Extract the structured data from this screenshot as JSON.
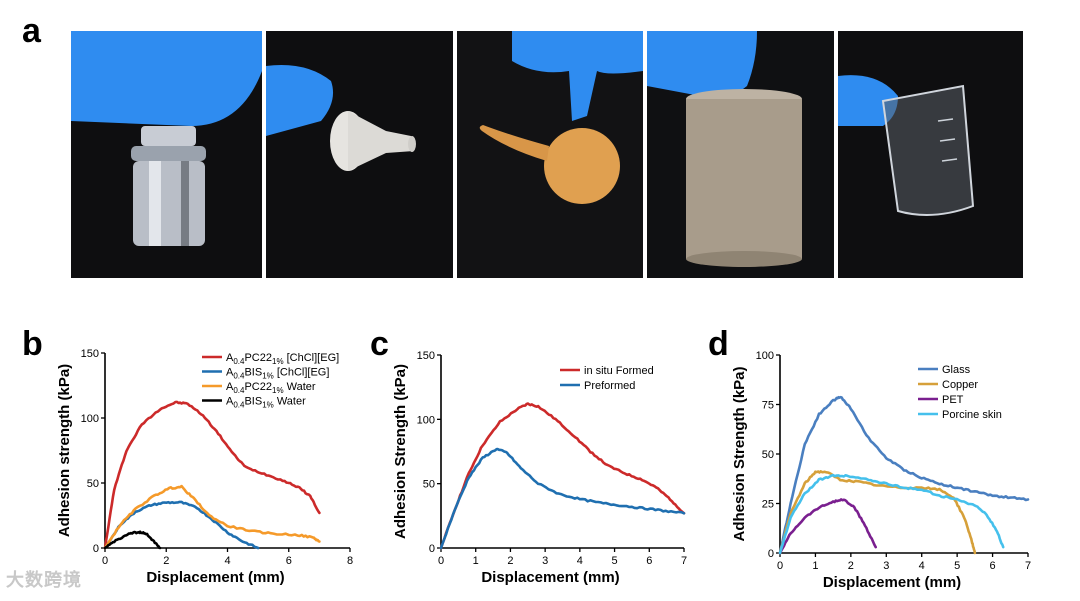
{
  "panel_letters": {
    "a": "a",
    "b": "b",
    "c": "c",
    "d": "d"
  },
  "photos": [
    {
      "subject": "metal-weight",
      "bg": "#0e0e10"
    },
    {
      "subject": "ceramic-funnel",
      "bg": "#0e0e10"
    },
    {
      "subject": "rubber-bulb",
      "bg": "#121214"
    },
    {
      "subject": "stone-cylinder",
      "bg": "#0f1012"
    },
    {
      "subject": "glass-beaker",
      "bg": "#0e0e10"
    }
  ],
  "colors": {
    "glove": "#2f8cf0",
    "red": "#cc2a2a",
    "blue": "#1f6fb0",
    "orange": "#f59a2a",
    "black": "#000000",
    "glass": "#4a7fc0",
    "copper": "#d6a03a",
    "pet": "#7a1f8f",
    "porcine": "#45c0ec"
  },
  "watermark": "大数跨境",
  "chart_data": [
    {
      "type": "line",
      "panel": "b",
      "xlabel": "Displacement (mm)",
      "ylabel": "Adhesion strength (kPa)",
      "xlim": [
        0,
        8
      ],
      "ylim": [
        0,
        150
      ],
      "xticks": [
        0,
        2,
        4,
        6,
        8
      ],
      "yticks": [
        0,
        50,
        100,
        150
      ],
      "legend_position": "top-right",
      "series": [
        {
          "name": "A0.4PC221% [ChCl][EG]",
          "legend": {
            "pre": "A",
            "sub1": "0.4",
            "mid": "PC22",
            "sub2": "1%",
            "post": " [ChCl][EG]"
          },
          "color": "#cc2a2a",
          "points": [
            [
              0,
              0
            ],
            [
              0.3,
              45
            ],
            [
              0.7,
              75
            ],
            [
              1.2,
              95
            ],
            [
              1.8,
              107
            ],
            [
              2.3,
              112
            ],
            [
              2.7,
              111
            ],
            [
              3.2,
              102
            ],
            [
              3.7,
              88
            ],
            [
              4.2,
              72
            ],
            [
              4.6,
              62
            ],
            [
              5.2,
              57
            ],
            [
              5.8,
              52
            ],
            [
              6.3,
              47
            ],
            [
              6.7,
              40
            ],
            [
              7.0,
              27
            ]
          ]
        },
        {
          "name": "A0.4BIS1% [ChCl][EG]",
          "legend": {
            "pre": "A",
            "sub1": "0.4",
            "mid": "BIS",
            "sub2": "1%",
            "post": " [ChCl][EG]"
          },
          "color": "#1f6fb0",
          "points": [
            [
              0,
              0
            ],
            [
              0.5,
              18
            ],
            [
              1.0,
              28
            ],
            [
              1.5,
              33
            ],
            [
              2.0,
              35
            ],
            [
              2.5,
              35
            ],
            [
              3.0,
              31
            ],
            [
              3.5,
              22
            ],
            [
              4.0,
              12
            ],
            [
              4.5,
              5
            ],
            [
              5.0,
              0
            ]
          ]
        },
        {
          "name": "A0.4PC221% Water",
          "legend": {
            "pre": "A",
            "sub1": "0.4",
            "mid": "PC22",
            "sub2": "1%",
            "post": " Water"
          },
          "color": "#f59a2a",
          "points": [
            [
              0,
              0
            ],
            [
              0.5,
              18
            ],
            [
              1.0,
              30
            ],
            [
              1.6,
              40
            ],
            [
              2.1,
              46
            ],
            [
              2.5,
              47
            ],
            [
              2.9,
              38
            ],
            [
              3.4,
              25
            ],
            [
              4.0,
              17
            ],
            [
              4.8,
              13
            ],
            [
              5.5,
              11
            ],
            [
              6.3,
              10
            ],
            [
              6.8,
              8
            ],
            [
              7.0,
              5
            ]
          ]
        },
        {
          "name": "A0.4BIS1% Water",
          "legend": {
            "pre": "A",
            "sub1": "0.4",
            "mid": "BIS",
            "sub2": "1%",
            "post": " Water"
          },
          "color": "#000000",
          "points": [
            [
              0,
              0
            ],
            [
              0.3,
              5
            ],
            [
              0.7,
              10
            ],
            [
              1.0,
              12
            ],
            [
              1.2,
              12
            ],
            [
              1.4,
              10
            ],
            [
              1.6,
              5
            ],
            [
              1.8,
              0
            ]
          ]
        }
      ]
    },
    {
      "type": "line",
      "panel": "c",
      "xlabel": "Displacement (mm)",
      "ylabel": "Adhesion Strength (kPa)",
      "xlim": [
        0,
        7
      ],
      "ylim": [
        0,
        150
      ],
      "xticks": [
        0,
        1,
        2,
        3,
        4,
        5,
        6,
        7
      ],
      "yticks": [
        0,
        50,
        100,
        150
      ],
      "legend_position": "top-right",
      "series": [
        {
          "name": "in situ Formed",
          "legend": {
            "pre": "in situ Formed"
          },
          "color": "#cc2a2a",
          "points": [
            [
              0,
              0
            ],
            [
              0.4,
              30
            ],
            [
              0.8,
              58
            ],
            [
              1.2,
              80
            ],
            [
              1.7,
              98
            ],
            [
              2.2,
              108
            ],
            [
              2.5,
              112
            ],
            [
              2.8,
              110
            ],
            [
              3.3,
              100
            ],
            [
              3.8,
              88
            ],
            [
              4.3,
              75
            ],
            [
              4.8,
              64
            ],
            [
              5.3,
              58
            ],
            [
              5.8,
              53
            ],
            [
              6.2,
              47
            ],
            [
              6.6,
              38
            ],
            [
              7.0,
              27
            ]
          ]
        },
        {
          "name": "Preformed",
          "legend": {
            "pre": "Preformed"
          },
          "color": "#1f6fb0",
          "points": [
            [
              0,
              0
            ],
            [
              0.4,
              30
            ],
            [
              0.8,
              55
            ],
            [
              1.2,
              70
            ],
            [
              1.6,
              77
            ],
            [
              1.9,
              74
            ],
            [
              2.3,
              62
            ],
            [
              2.8,
              50
            ],
            [
              3.4,
              42
            ],
            [
              4.0,
              38
            ],
            [
              4.6,
              35
            ],
            [
              5.2,
              33
            ],
            [
              5.8,
              31
            ],
            [
              6.4,
              29
            ],
            [
              7.0,
              27
            ]
          ]
        }
      ]
    },
    {
      "type": "line",
      "panel": "d",
      "xlabel": "Displacement (mm)",
      "ylabel": "Adhesion Strength (kPa)",
      "xlim": [
        0,
        7
      ],
      "ylim": [
        0,
        100
      ],
      "xticks": [
        0,
        1,
        2,
        3,
        4,
        5,
        6,
        7
      ],
      "yticks": [
        0,
        25,
        50,
        75,
        100
      ],
      "legend_position": "top-right",
      "series": [
        {
          "name": "Glass",
          "legend": {
            "pre": "Glass"
          },
          "color": "#4a7fc0",
          "points": [
            [
              0,
              0
            ],
            [
              0.3,
              25
            ],
            [
              0.7,
              55
            ],
            [
              1.1,
              70
            ],
            [
              1.5,
              77
            ],
            [
              1.7,
              79
            ],
            [
              2.0,
              73
            ],
            [
              2.5,
              58
            ],
            [
              3.0,
              48
            ],
            [
              3.5,
              42
            ],
            [
              4.0,
              38
            ],
            [
              4.5,
              35
            ],
            [
              5.0,
              33
            ],
            [
              5.5,
              31
            ],
            [
              6.0,
              29
            ],
            [
              6.5,
              28
            ],
            [
              7.0,
              27
            ]
          ]
        },
        {
          "name": "Copper",
          "legend": {
            "pre": "Copper"
          },
          "color": "#d6a03a",
          "points": [
            [
              0,
              0
            ],
            [
              0.3,
              20
            ],
            [
              0.7,
              35
            ],
            [
              1.0,
              41
            ],
            [
              1.3,
              41
            ],
            [
              1.7,
              37
            ],
            [
              2.2,
              36
            ],
            [
              2.8,
              34
            ],
            [
              3.4,
              33
            ],
            [
              4.0,
              33
            ],
            [
              4.5,
              32
            ],
            [
              4.9,
              28
            ],
            [
              5.2,
              18
            ],
            [
              5.4,
              7
            ],
            [
              5.5,
              0
            ]
          ]
        },
        {
          "name": "PET",
          "legend": {
            "pre": "PET"
          },
          "color": "#7a1f8f",
          "points": [
            [
              0,
              0
            ],
            [
              0.3,
              10
            ],
            [
              0.7,
              18
            ],
            [
              1.1,
              23
            ],
            [
              1.5,
              26
            ],
            [
              1.8,
              27
            ],
            [
              2.1,
              23
            ],
            [
              2.4,
              14
            ],
            [
              2.7,
              3
            ]
          ]
        },
        {
          "name": "Porcine skin",
          "legend": {
            "pre": "Porcine skin"
          },
          "color": "#45c0ec",
          "points": [
            [
              0,
              0
            ],
            [
              0.3,
              18
            ],
            [
              0.7,
              30
            ],
            [
              1.1,
              37
            ],
            [
              1.5,
              39
            ],
            [
              1.9,
              39
            ],
            [
              2.5,
              37
            ],
            [
              3.0,
              35
            ],
            [
              3.5,
              33
            ],
            [
              4.0,
              32
            ],
            [
              4.5,
              29
            ],
            [
              5.0,
              27
            ],
            [
              5.5,
              24
            ],
            [
              5.8,
              20
            ],
            [
              6.1,
              12
            ],
            [
              6.3,
              3
            ]
          ]
        }
      ]
    }
  ]
}
